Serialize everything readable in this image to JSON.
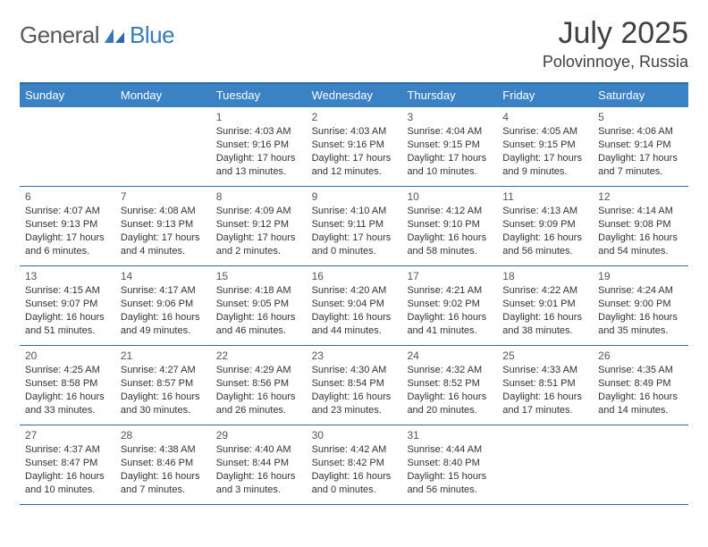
{
  "logo": {
    "text_a": "General",
    "text_b": "Blue"
  },
  "title": "July 2025",
  "subtitle": "Polovinnoye, Russia",
  "colors": {
    "header_bg": "#3b82c4",
    "header_text": "#ffffff",
    "border": "#2d6ca2",
    "body_text": "#333333",
    "logo_gray": "#58595b",
    "logo_blue": "#3a7ab8"
  },
  "day_headers": [
    "Sunday",
    "Monday",
    "Tuesday",
    "Wednesday",
    "Thursday",
    "Friday",
    "Saturday"
  ],
  "weeks": [
    [
      {
        "day": "",
        "sunrise": "",
        "sunset": "",
        "daylight": ""
      },
      {
        "day": "",
        "sunrise": "",
        "sunset": "",
        "daylight": ""
      },
      {
        "day": "1",
        "sunrise": "Sunrise: 4:03 AM",
        "sunset": "Sunset: 9:16 PM",
        "daylight": "Daylight: 17 hours and 13 minutes."
      },
      {
        "day": "2",
        "sunrise": "Sunrise: 4:03 AM",
        "sunset": "Sunset: 9:16 PM",
        "daylight": "Daylight: 17 hours and 12 minutes."
      },
      {
        "day": "3",
        "sunrise": "Sunrise: 4:04 AM",
        "sunset": "Sunset: 9:15 PM",
        "daylight": "Daylight: 17 hours and 10 minutes."
      },
      {
        "day": "4",
        "sunrise": "Sunrise: 4:05 AM",
        "sunset": "Sunset: 9:15 PM",
        "daylight": "Daylight: 17 hours and 9 minutes."
      },
      {
        "day": "5",
        "sunrise": "Sunrise: 4:06 AM",
        "sunset": "Sunset: 9:14 PM",
        "daylight": "Daylight: 17 hours and 7 minutes."
      }
    ],
    [
      {
        "day": "6",
        "sunrise": "Sunrise: 4:07 AM",
        "sunset": "Sunset: 9:13 PM",
        "daylight": "Daylight: 17 hours and 6 minutes."
      },
      {
        "day": "7",
        "sunrise": "Sunrise: 4:08 AM",
        "sunset": "Sunset: 9:13 PM",
        "daylight": "Daylight: 17 hours and 4 minutes."
      },
      {
        "day": "8",
        "sunrise": "Sunrise: 4:09 AM",
        "sunset": "Sunset: 9:12 PM",
        "daylight": "Daylight: 17 hours and 2 minutes."
      },
      {
        "day": "9",
        "sunrise": "Sunrise: 4:10 AM",
        "sunset": "Sunset: 9:11 PM",
        "daylight": "Daylight: 17 hours and 0 minutes."
      },
      {
        "day": "10",
        "sunrise": "Sunrise: 4:12 AM",
        "sunset": "Sunset: 9:10 PM",
        "daylight": "Daylight: 16 hours and 58 minutes."
      },
      {
        "day": "11",
        "sunrise": "Sunrise: 4:13 AM",
        "sunset": "Sunset: 9:09 PM",
        "daylight": "Daylight: 16 hours and 56 minutes."
      },
      {
        "day": "12",
        "sunrise": "Sunrise: 4:14 AM",
        "sunset": "Sunset: 9:08 PM",
        "daylight": "Daylight: 16 hours and 54 minutes."
      }
    ],
    [
      {
        "day": "13",
        "sunrise": "Sunrise: 4:15 AM",
        "sunset": "Sunset: 9:07 PM",
        "daylight": "Daylight: 16 hours and 51 minutes."
      },
      {
        "day": "14",
        "sunrise": "Sunrise: 4:17 AM",
        "sunset": "Sunset: 9:06 PM",
        "daylight": "Daylight: 16 hours and 49 minutes."
      },
      {
        "day": "15",
        "sunrise": "Sunrise: 4:18 AM",
        "sunset": "Sunset: 9:05 PM",
        "daylight": "Daylight: 16 hours and 46 minutes."
      },
      {
        "day": "16",
        "sunrise": "Sunrise: 4:20 AM",
        "sunset": "Sunset: 9:04 PM",
        "daylight": "Daylight: 16 hours and 44 minutes."
      },
      {
        "day": "17",
        "sunrise": "Sunrise: 4:21 AM",
        "sunset": "Sunset: 9:02 PM",
        "daylight": "Daylight: 16 hours and 41 minutes."
      },
      {
        "day": "18",
        "sunrise": "Sunrise: 4:22 AM",
        "sunset": "Sunset: 9:01 PM",
        "daylight": "Daylight: 16 hours and 38 minutes."
      },
      {
        "day": "19",
        "sunrise": "Sunrise: 4:24 AM",
        "sunset": "Sunset: 9:00 PM",
        "daylight": "Daylight: 16 hours and 35 minutes."
      }
    ],
    [
      {
        "day": "20",
        "sunrise": "Sunrise: 4:25 AM",
        "sunset": "Sunset: 8:58 PM",
        "daylight": "Daylight: 16 hours and 33 minutes."
      },
      {
        "day": "21",
        "sunrise": "Sunrise: 4:27 AM",
        "sunset": "Sunset: 8:57 PM",
        "daylight": "Daylight: 16 hours and 30 minutes."
      },
      {
        "day": "22",
        "sunrise": "Sunrise: 4:29 AM",
        "sunset": "Sunset: 8:56 PM",
        "daylight": "Daylight: 16 hours and 26 minutes."
      },
      {
        "day": "23",
        "sunrise": "Sunrise: 4:30 AM",
        "sunset": "Sunset: 8:54 PM",
        "daylight": "Daylight: 16 hours and 23 minutes."
      },
      {
        "day": "24",
        "sunrise": "Sunrise: 4:32 AM",
        "sunset": "Sunset: 8:52 PM",
        "daylight": "Daylight: 16 hours and 20 minutes."
      },
      {
        "day": "25",
        "sunrise": "Sunrise: 4:33 AM",
        "sunset": "Sunset: 8:51 PM",
        "daylight": "Daylight: 16 hours and 17 minutes."
      },
      {
        "day": "26",
        "sunrise": "Sunrise: 4:35 AM",
        "sunset": "Sunset: 8:49 PM",
        "daylight": "Daylight: 16 hours and 14 minutes."
      }
    ],
    [
      {
        "day": "27",
        "sunrise": "Sunrise: 4:37 AM",
        "sunset": "Sunset: 8:47 PM",
        "daylight": "Daylight: 16 hours and 10 minutes."
      },
      {
        "day": "28",
        "sunrise": "Sunrise: 4:38 AM",
        "sunset": "Sunset: 8:46 PM",
        "daylight": "Daylight: 16 hours and 7 minutes."
      },
      {
        "day": "29",
        "sunrise": "Sunrise: 4:40 AM",
        "sunset": "Sunset: 8:44 PM",
        "daylight": "Daylight: 16 hours and 3 minutes."
      },
      {
        "day": "30",
        "sunrise": "Sunrise: 4:42 AM",
        "sunset": "Sunset: 8:42 PM",
        "daylight": "Daylight: 16 hours and 0 minutes."
      },
      {
        "day": "31",
        "sunrise": "Sunrise: 4:44 AM",
        "sunset": "Sunset: 8:40 PM",
        "daylight": "Daylight: 15 hours and 56 minutes."
      },
      {
        "day": "",
        "sunrise": "",
        "sunset": "",
        "daylight": ""
      },
      {
        "day": "",
        "sunrise": "",
        "sunset": "",
        "daylight": ""
      }
    ]
  ]
}
